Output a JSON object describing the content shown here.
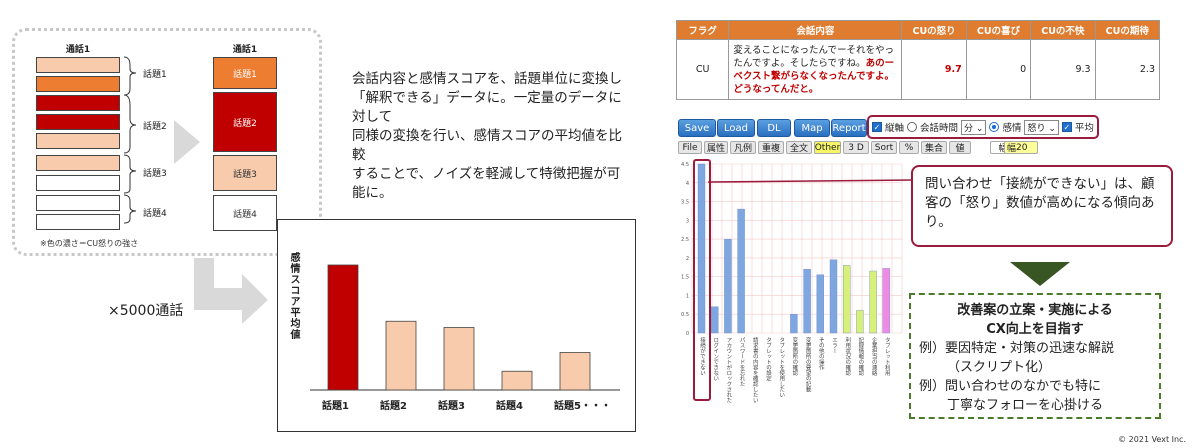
{
  "left_diagram": {
    "col1_header": "通話1",
    "col2_header": "通話1",
    "topics": [
      "話題1",
      "話題2",
      "話題3",
      "話題4"
    ],
    "note": "※色の濃さ＝CU怒りの強さ",
    "colors": {
      "dark_red": "#c00000",
      "orange": "#ed7d31",
      "peach": "#f8cbad",
      "white": "#ffffff"
    }
  },
  "description": {
    "lines": [
      "会話内容と感情スコアを、話題単位に変換し",
      "「解釈できる」データに。一定量のデータに対して",
      "同様の変換を行い、感情スコアの平均値を比較",
      "することで、ノイズを軽減して特徴把握が可能に。"
    ]
  },
  "multiplier": "×5000通話",
  "chart_data": {
    "type": "bar",
    "categories": [
      "話題1",
      "話題2",
      "話題3",
      "話題4",
      "話題5・・・"
    ],
    "values": [
      100,
      55,
      50,
      15,
      30
    ],
    "ylabel": "感情スコア平均値",
    "colors": [
      "#c00000",
      "#f8cbad",
      "#f8cbad",
      "#f8cbad",
      "#f8cbad"
    ]
  },
  "conv_table": {
    "headers": [
      "フラグ",
      "会話内容",
      "CUの怒り",
      "CUの喜び",
      "CUの不快",
      "CUの期待"
    ],
    "row": {
      "flag": "CU",
      "content_normal": "変えることになったんでーそれをやったんですよ。そしたらですね。",
      "content_red": "あのーベクスト繋がらなくなったんですよ。どうなってんだと。",
      "anger": "9.7",
      "joy": "0",
      "discomfort": "9.3",
      "expectation": "2.3"
    }
  },
  "toolbar": {
    "buttons": [
      "Save",
      "Load",
      "DL",
      "Map",
      "Report"
    ],
    "ctrl": {
      "vertical": "縦軸",
      "talk_time": "会話時間",
      "unit": "分",
      "emotion": "感情",
      "emotion_value": "怒り",
      "average": "平均"
    },
    "tabs": [
      "File",
      "属性",
      "凡例",
      "重複",
      "全文",
      "Other",
      "3 D",
      "Sort",
      "%",
      "集合",
      "値"
    ],
    "width_label": "幅",
    "width_value": "20"
  },
  "app_chart": {
    "values": [
      4.5,
      0.7,
      2.5,
      3.3,
      0,
      0,
      0,
      0.5,
      1.7,
      1.55,
      1.95,
      1.8,
      0.6,
      1.65,
      1.72
    ],
    "colors": [
      "#7ea6e0",
      "#7ea6e0",
      "#7ea6e0",
      "#7ea6e0",
      "#7ea6e0",
      "#7ea6e0",
      "#7ea6e0",
      "#7ea6e0",
      "#7ea6e0",
      "#7ea6e0",
      "#7ea6e0",
      "#d6f07a",
      "#d6f07a",
      "#d6f07a",
      "#f08ae6"
    ],
    "ticks": [
      "4.5",
      "4",
      "3.5",
      "3",
      "2.5",
      "2",
      "1.5",
      "1",
      "0.5",
      "0"
    ],
    "labels": [
      "接続ができない",
      "ログインできない",
      "アカウントがロックされた",
      "パスワードを忘れた",
      "請求書の内容を確認したい",
      "タブレットの設定",
      "タブレットを使用したい",
      "変更箇所の確認",
      "変更箇所の要望の記載",
      "その他の操作",
      "エラー",
      "利用状況の確認",
      "記録情報の確認",
      "企業担当の連絡",
      "タブレット利用"
    ]
  },
  "callout": "問い合わせ「接続ができない」は、顧客の「怒り」数値が高めになる傾向あり。",
  "improve": {
    "title1": "改善案の立案・実施による",
    "title2": "CX向上を目指す",
    "line1": "例）要因特定・対策の迅速な解説",
    "line2": "（スクリプト化）",
    "line3": "例）問い合わせのなかでも特に",
    "line4": "丁寧なフォローを心掛ける"
  },
  "copyright": "© 2021 Vext Inc."
}
